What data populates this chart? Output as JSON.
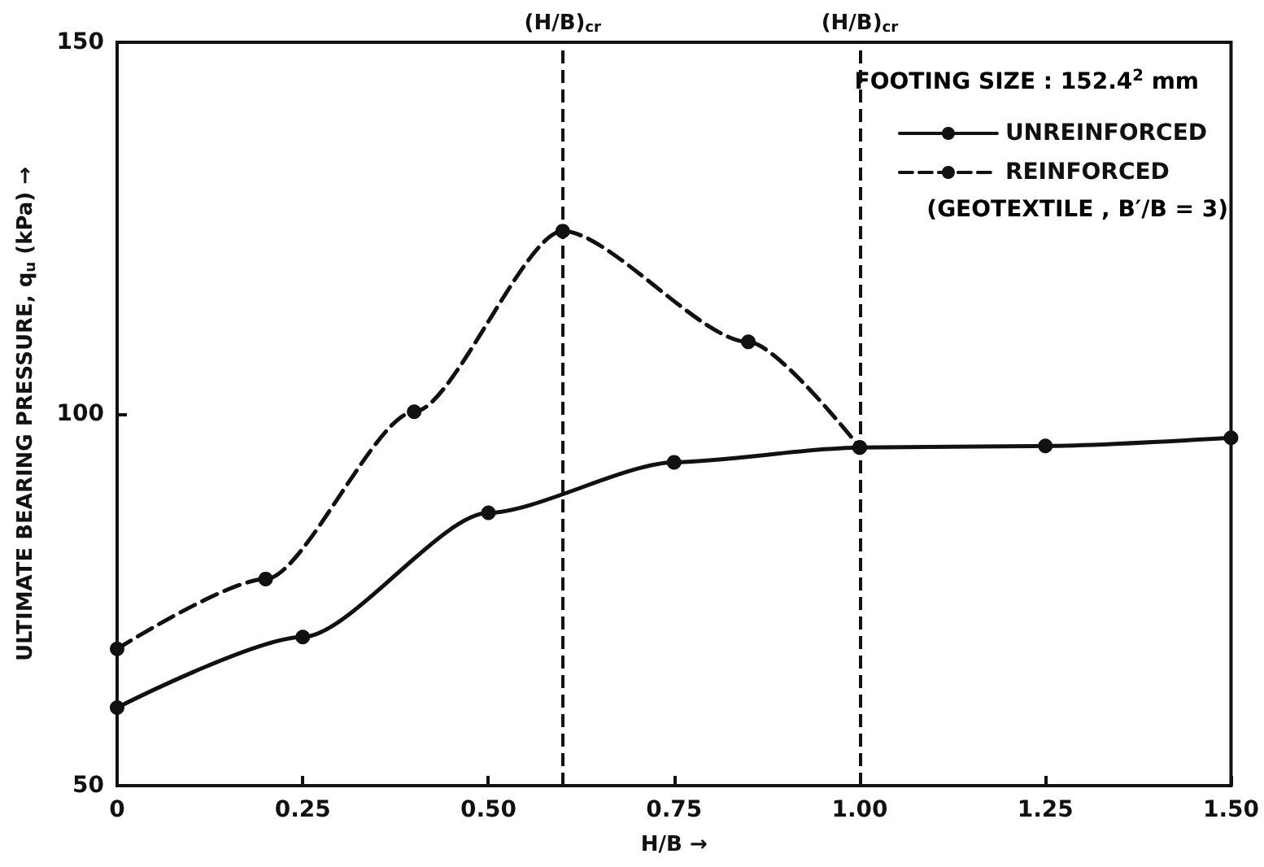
{
  "chart_data": {
    "type": "line",
    "xlabel": "H/B →",
    "ylabel": "ULTIMATE BEARING PRESSURE, q$_{u}$ (kPa) →",
    "legend_title": "FOOTING SIZE : 152.4$^{2}$ mm",
    "x": [
      0,
      0.25,
      0.5,
      0.75,
      1.0,
      1.25,
      1.5
    ],
    "series": [
      {
        "name": "UNREINFORCED",
        "color": "#111111",
        "line_style": "solid",
        "values": [
          60.5,
          70,
          86.7,
          93.5,
          95.5,
          95.7,
          96.8
        ]
      },
      {
        "name": "REINFORCED",
        "color": "#111111",
        "line_style": "dashed",
        "x": [
          0,
          0.2,
          0.4,
          0.6,
          0.85,
          1.0
        ],
        "values": [
          68.4,
          77.8,
          100.3,
          124.6,
          109.7,
          95.5
        ]
      }
    ],
    "annotations": [
      "(GEOTEXTILE , B′/B = 3)"
    ],
    "ref_lines": [
      {
        "axis": "x",
        "value": 0.6,
        "label": "(H/B)$_{cr}$",
        "line_style": "dashed",
        "color": "#111111"
      },
      {
        "axis": "x",
        "value": 1.0,
        "label": "(H/B)$_{cr}$",
        "line_style": "dashed",
        "color": "#111111"
      }
    ],
    "xlim": [
      0,
      1.5
    ],
    "xticks": [
      0,
      {
        "value": 0.25,
        "label": "0.25"
      },
      {
        "value": 0.5,
        "label": "0.50"
      },
      {
        "value": 0.75,
        "label": "0.75"
      },
      {
        "value": 1.0,
        "label": "1.00"
      },
      {
        "value": 1.25,
        "label": "1.25"
      },
      {
        "value": 1.5,
        "label": "1.50"
      }
    ],
    "ylim": [
      50,
      150
    ],
    "yticks": [
      50,
      100,
      150
    ],
    "grid": false,
    "legend": "top right",
    "marker": "circle"
  }
}
